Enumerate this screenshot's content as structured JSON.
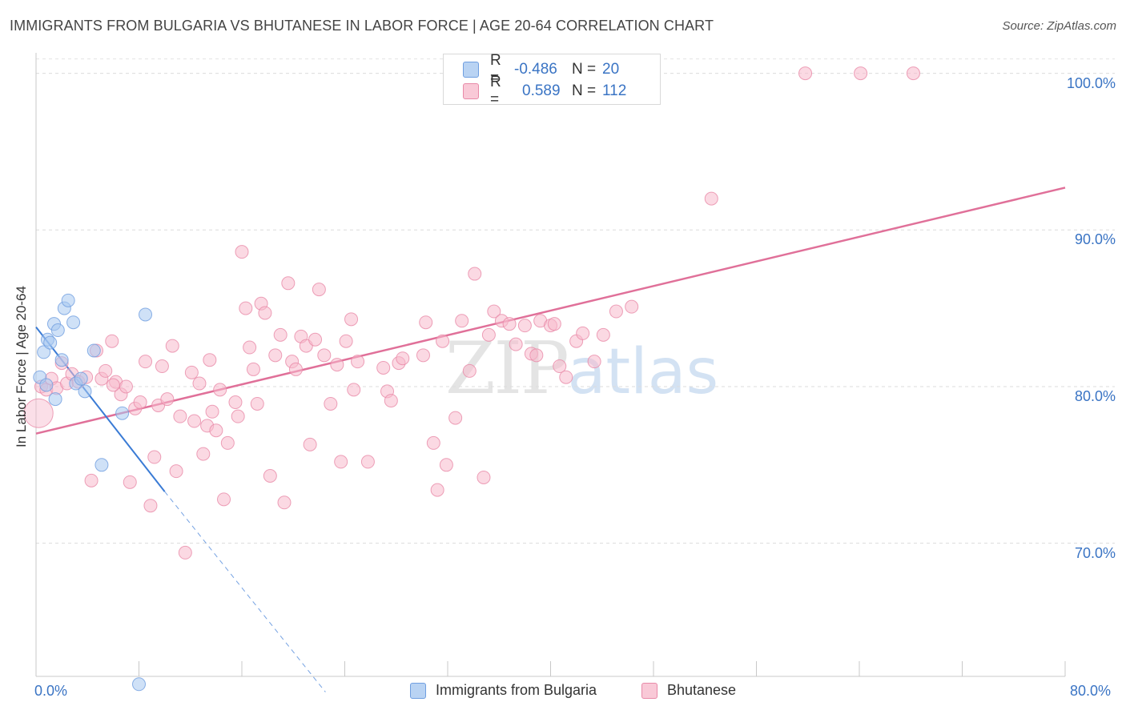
{
  "title": "IMMIGRANTS FROM BULGARIA VS BHUTANESE IN LABOR FORCE | AGE 20-64 CORRELATION CHART",
  "source": "Source: ZipAtlas.com",
  "watermark": {
    "zip": "ZIP",
    "atlas": "atlas"
  },
  "colors": {
    "blue": "#a7c8f0",
    "blue_edge": "#6f9ee0",
    "blue_line": "#3a7bd5",
    "pink": "#f7b9cc",
    "pink_edge": "#e88aa8",
    "pink_line": "#e07099",
    "tick_text": "#3a74c4"
  },
  "legend_top": {
    "series1": {
      "r_label": "R =",
      "r_value": "-0.486",
      "n_label": "N =",
      "n_value": "20"
    },
    "series2": {
      "r_label": "R =",
      "r_value": "0.589",
      "n_label": "N =",
      "n_value": "112"
    }
  },
  "chart_data": {
    "type": "scatter",
    "title": "IMMIGRANTS FROM BULGARIA VS BHUTANESE IN LABOR FORCE | AGE 20-64 CORRELATION CHART",
    "xlabel": "",
    "ylabel": "In Labor Force | Age 20-64",
    "xlim": [
      0,
      80
    ],
    "ylim": [
      61.5,
      101
    ],
    "x_tick_labels": [
      "0.0%",
      "80.0%"
    ],
    "y_ticks": [
      70,
      80,
      90,
      100
    ],
    "y_tick_labels": [
      "70.0%",
      "80.0%",
      "90.0%",
      "100.0%"
    ],
    "legend": [
      "Immigrants from Bulgaria",
      "Bhutanese"
    ],
    "series": [
      {
        "name": "Immigrants from Bulgaria",
        "color": "#a7c8f0",
        "points": [
          [
            0.3,
            80.6
          ],
          [
            0.6,
            82.2
          ],
          [
            0.9,
            83.0
          ],
          [
            1.1,
            82.8
          ],
          [
            1.4,
            84.0
          ],
          [
            1.7,
            83.6
          ],
          [
            2.2,
            85.0
          ],
          [
            2.5,
            85.5
          ],
          [
            2.9,
            84.1
          ],
          [
            3.1,
            80.2
          ],
          [
            3.5,
            80.5
          ],
          [
            3.8,
            79.7
          ],
          [
            4.5,
            82.3
          ],
          [
            5.1,
            75.0
          ],
          [
            6.7,
            78.3
          ],
          [
            8.5,
            84.6
          ],
          [
            1.5,
            79.2
          ],
          [
            0.8,
            80.1
          ],
          [
            2.0,
            81.7
          ],
          [
            8.0,
            61.0
          ]
        ],
        "trend": {
          "x": [
            0,
            10
          ],
          "y": [
            83.8,
            73.3
          ],
          "dashed_to": [
            22.5,
            60.5
          ]
        }
      },
      {
        "name": "Bhutanese",
        "color": "#f7b9cc",
        "points": [
          [
            0.2,
            78.3
          ],
          [
            0.4,
            80.0
          ],
          [
            0.8,
            79.8
          ],
          [
            1.2,
            80.5
          ],
          [
            1.6,
            79.9
          ],
          [
            2.0,
            81.5
          ],
          [
            2.4,
            80.2
          ],
          [
            2.8,
            80.8
          ],
          [
            3.3,
            80.3
          ],
          [
            3.9,
            80.6
          ],
          [
            4.3,
            74.0
          ],
          [
            4.7,
            82.3
          ],
          [
            5.1,
            80.5
          ],
          [
            5.4,
            81.0
          ],
          [
            5.9,
            82.9
          ],
          [
            6.2,
            80.3
          ],
          [
            6.6,
            79.5
          ],
          [
            7.0,
            80.0
          ],
          [
            7.3,
            73.9
          ],
          [
            7.7,
            78.6
          ],
          [
            8.1,
            79.0
          ],
          [
            8.5,
            81.6
          ],
          [
            8.9,
            72.4
          ],
          [
            9.2,
            75.5
          ],
          [
            9.5,
            78.8
          ],
          [
            10.2,
            79.2
          ],
          [
            10.6,
            82.6
          ],
          [
            10.9,
            74.6
          ],
          [
            11.2,
            78.1
          ],
          [
            11.6,
            69.4
          ],
          [
            12.1,
            80.9
          ],
          [
            12.3,
            77.8
          ],
          [
            12.7,
            80.2
          ],
          [
            13.0,
            75.7
          ],
          [
            13.3,
            77.5
          ],
          [
            13.7,
            78.4
          ],
          [
            14.0,
            77.2
          ],
          [
            14.3,
            79.8
          ],
          [
            14.6,
            72.8
          ],
          [
            14.9,
            76.4
          ],
          [
            15.5,
            79.0
          ],
          [
            15.7,
            78.1
          ],
          [
            16.0,
            88.6
          ],
          [
            16.3,
            85.0
          ],
          [
            16.6,
            82.5
          ],
          [
            16.9,
            81.1
          ],
          [
            17.2,
            78.9
          ],
          [
            17.5,
            85.3
          ],
          [
            17.8,
            84.7
          ],
          [
            18.2,
            74.3
          ],
          [
            18.6,
            82.0
          ],
          [
            19.0,
            83.3
          ],
          [
            19.3,
            72.6
          ],
          [
            19.6,
            86.6
          ],
          [
            19.9,
            81.6
          ],
          [
            20.2,
            81.1
          ],
          [
            20.6,
            83.2
          ],
          [
            21.0,
            82.6
          ],
          [
            21.3,
            76.3
          ],
          [
            21.7,
            83.0
          ],
          [
            22.0,
            86.2
          ],
          [
            22.4,
            82.0
          ],
          [
            22.9,
            78.9
          ],
          [
            23.4,
            81.4
          ],
          [
            23.7,
            75.2
          ],
          [
            24.1,
            82.9
          ],
          [
            24.5,
            84.3
          ],
          [
            24.7,
            79.8
          ],
          [
            25.0,
            81.6
          ],
          [
            25.8,
            75.2
          ],
          [
            27.0,
            81.2
          ],
          [
            27.3,
            79.7
          ],
          [
            27.6,
            79.1
          ],
          [
            28.2,
            81.5
          ],
          [
            28.5,
            81.8
          ],
          [
            30.1,
            82.0
          ],
          [
            30.3,
            84.1
          ],
          [
            30.9,
            76.4
          ],
          [
            31.2,
            73.4
          ],
          [
            31.6,
            82.9
          ],
          [
            31.9,
            75.0
          ],
          [
            32.6,
            78.0
          ],
          [
            33.1,
            84.2
          ],
          [
            33.7,
            81.0
          ],
          [
            34.1,
            87.2
          ],
          [
            34.8,
            74.2
          ],
          [
            35.2,
            83.3
          ],
          [
            35.6,
            84.8
          ],
          [
            36.2,
            84.2
          ],
          [
            36.8,
            84.0
          ],
          [
            37.3,
            82.7
          ],
          [
            38.0,
            83.9
          ],
          [
            38.5,
            82.1
          ],
          [
            38.9,
            82.0
          ],
          [
            39.2,
            84.2
          ],
          [
            40.0,
            83.9
          ],
          [
            40.3,
            84.0
          ],
          [
            40.7,
            81.3
          ],
          [
            41.2,
            80.6
          ],
          [
            42.0,
            82.9
          ],
          [
            42.5,
            83.4
          ],
          [
            43.4,
            81.6
          ],
          [
            44.1,
            83.3
          ],
          [
            45.1,
            84.8
          ],
          [
            46.3,
            85.1
          ],
          [
            52.5,
            92.0
          ],
          [
            59.8,
            100.0
          ],
          [
            64.1,
            100.0
          ],
          [
            68.2,
            100.0
          ],
          [
            6.0,
            80.1
          ],
          [
            9.8,
            81.3
          ],
          [
            13.5,
            81.7
          ]
        ],
        "trend": {
          "x": [
            0,
            80
          ],
          "y": [
            77.0,
            92.7
          ]
        }
      }
    ]
  }
}
